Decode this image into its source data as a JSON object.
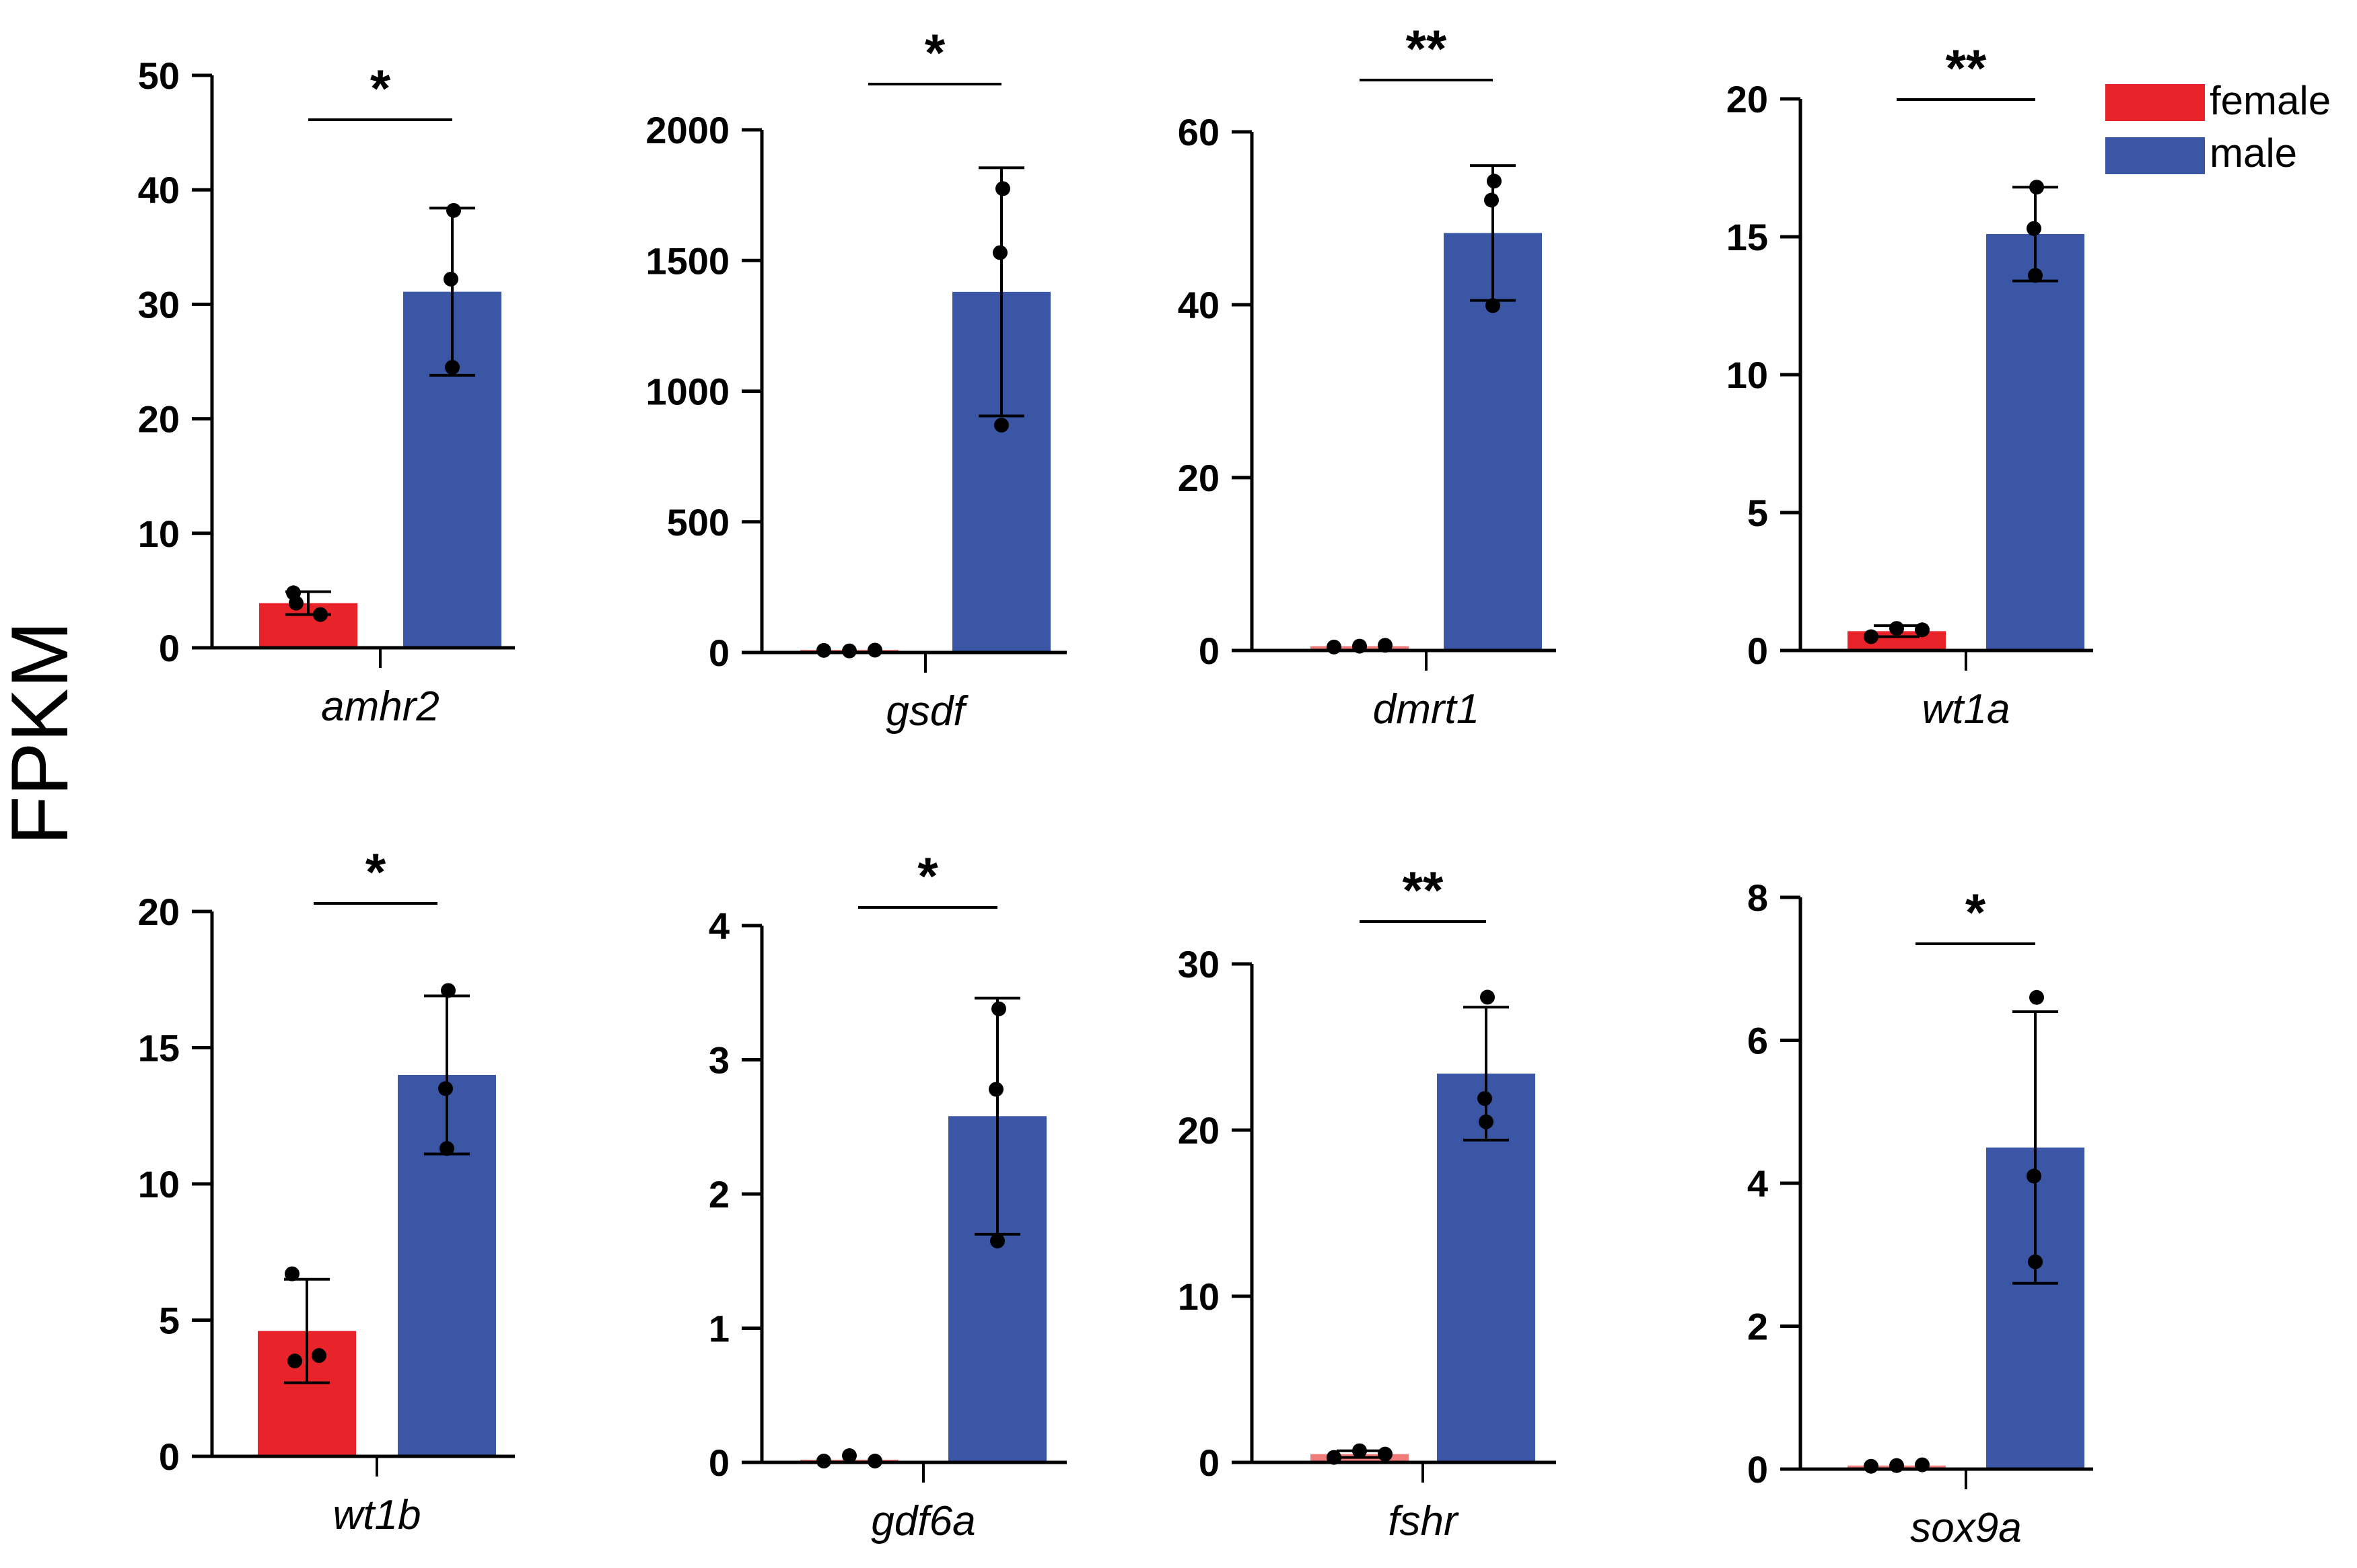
{
  "figure": {
    "ylabel": "FPKM",
    "colors": {
      "female": "#e8242a",
      "male": "#3a56a4",
      "female_light": "#f07c7c"
    }
  },
  "legend": {
    "items": [
      {
        "label": "female",
        "color": "#e8242a"
      },
      {
        "label": "male",
        "color": "#3a56a4"
      }
    ]
  },
  "chart_data": [
    {
      "type": "bar",
      "gene": "amhr2",
      "categories": [
        "female",
        "male"
      ],
      "ylim": [
        0,
        50
      ],
      "ticks": [
        0,
        10,
        20,
        30,
        40,
        50
      ],
      "series": [
        {
          "name": "female",
          "mean": 3.9,
          "sd": 1.0,
          "points": [
            4.8,
            2.9,
            3.9
          ]
        },
        {
          "name": "male",
          "mean": 31.1,
          "sd": 7.3,
          "points": [
            38.2,
            32.2,
            24.5
          ]
        }
      ],
      "significance": "*"
    },
    {
      "type": "bar",
      "gene": "gsdf",
      "categories": [
        "female",
        "male"
      ],
      "ylim": [
        0,
        2000
      ],
      "ticks": [
        0,
        500,
        1000,
        1500,
        2000
      ],
      "series": [
        {
          "name": "female",
          "mean": 8,
          "sd": 3,
          "points": [
            8,
            6,
            9
          ]
        },
        {
          "name": "male",
          "mean": 1380,
          "sd": 475,
          "points": [
            1775,
            1530,
            870
          ]
        }
      ],
      "significance": "*"
    },
    {
      "type": "bar",
      "gene": "dmrt1",
      "categories": [
        "female",
        "male"
      ],
      "ylim": [
        0,
        60
      ],
      "ticks": [
        0,
        20,
        40,
        60
      ],
      "series": [
        {
          "name": "female",
          "mean": 0.5,
          "sd": 0.1,
          "points": [
            0.4,
            0.5,
            0.6
          ]
        },
        {
          "name": "male",
          "mean": 48.3,
          "sd": 7.8,
          "points": [
            54.3,
            52.1,
            39.9
          ]
        }
      ],
      "significance": "**"
    },
    {
      "type": "bar",
      "gene": "wt1a",
      "categories": [
        "female",
        "male"
      ],
      "ylim": [
        0,
        20
      ],
      "ticks": [
        0,
        5,
        10,
        15,
        20
      ],
      "series": [
        {
          "name": "female",
          "mean": 0.7,
          "sd": 0.2,
          "points": [
            0.5,
            0.8,
            0.75
          ]
        },
        {
          "name": "male",
          "mean": 15.1,
          "sd": 1.7,
          "points": [
            16.8,
            15.3,
            13.6
          ]
        }
      ],
      "significance": "**"
    },
    {
      "type": "bar",
      "gene": "wt1b",
      "categories": [
        "female",
        "male"
      ],
      "ylim": [
        0,
        20
      ],
      "ticks": [
        0,
        5,
        10,
        15,
        20
      ],
      "series": [
        {
          "name": "female",
          "mean": 4.6,
          "sd": 1.9,
          "points": [
            6.7,
            3.7,
            3.5
          ]
        },
        {
          "name": "male",
          "mean": 14.0,
          "sd": 2.9,
          "points": [
            17.1,
            13.5,
            11.3
          ]
        }
      ],
      "significance": "*"
    },
    {
      "type": "bar",
      "gene": "gdf6a",
      "categories": [
        "female",
        "male"
      ],
      "ylim": [
        0,
        4
      ],
      "ticks": [
        0,
        1,
        2,
        3,
        4
      ],
      "series": [
        {
          "name": "female",
          "mean": 0.02,
          "sd": 0.01,
          "points": [
            0.01,
            0.05,
            0.01
          ]
        },
        {
          "name": "male",
          "mean": 2.58,
          "sd": 0.88,
          "points": [
            3.38,
            2.78,
            1.65
          ]
        }
      ],
      "significance": "*"
    },
    {
      "type": "bar",
      "gene": "fshr",
      "categories": [
        "female",
        "male"
      ],
      "ylim": [
        0,
        30
      ],
      "ticks": [
        0,
        10,
        20,
        30
      ],
      "series": [
        {
          "name": "female",
          "mean": 0.5,
          "sd": 0.2,
          "points": [
            0.3,
            0.7,
            0.5
          ]
        },
        {
          "name": "male",
          "mean": 23.4,
          "sd": 4.0,
          "points": [
            28.0,
            21.9,
            20.5
          ]
        }
      ],
      "significance": "**"
    },
    {
      "type": "bar",
      "gene": "sox9a",
      "categories": [
        "female",
        "male"
      ],
      "ylim": [
        0,
        8
      ],
      "ticks": [
        0,
        2,
        4,
        6,
        8
      ],
      "series": [
        {
          "name": "female",
          "mean": 0.05,
          "sd": 0.01,
          "points": [
            0.04,
            0.05,
            0.06
          ]
        },
        {
          "name": "male",
          "mean": 4.5,
          "sd": 1.9,
          "points": [
            6.6,
            4.1,
            2.9
          ]
        }
      ],
      "significance": "*"
    }
  ]
}
